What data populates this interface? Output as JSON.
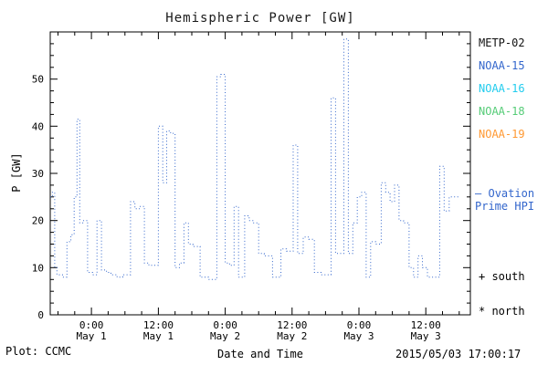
{
  "title": "Hemispheric Power [GW]",
  "ylabel": "P [GW]",
  "xlabel": "Date and Time",
  "footer": {
    "left": "Plot: CCMC",
    "right": "2015/05/03 17:00:17"
  },
  "legend": {
    "satellites": [
      {
        "label": "METP-02",
        "color": "#111111"
      },
      {
        "label": "NOAA-15",
        "color": "#3366cc"
      },
      {
        "label": "NOAA-16",
        "color": "#22ccee"
      },
      {
        "label": "NOAA-18",
        "color": "#55cc77"
      },
      {
        "label": "NOAA-19",
        "color": "#ff9933"
      }
    ],
    "line_sample": "–",
    "line_label_1": "Ovation",
    "line_label_2": "Prime HPI",
    "line_color": "#3366cc",
    "south_label": "+ south",
    "north_label": "* north"
  },
  "chart_data": {
    "type": "line",
    "style": "dotted-step",
    "title": "Hemispheric Power [GW]",
    "xlabel": "Date and Time",
    "ylabel": "P [GW]",
    "color": "#3366cc",
    "x_unit": "hours from 2015-05-01 00:00 UT",
    "xlim": [
      -7.4,
      68
    ],
    "ylim": [
      0,
      60
    ],
    "yticks": [
      0,
      10,
      20,
      30,
      40,
      50
    ],
    "y_minor_step": 2.5,
    "x_minor_step": 3,
    "xticks": [
      {
        "t": 0,
        "time": "0:00",
        "date": "May 1"
      },
      {
        "t": 12,
        "time": "12:00",
        "date": "May 1"
      },
      {
        "t": 24,
        "time": "0:00",
        "date": "May 2"
      },
      {
        "t": 36,
        "time": "12:00",
        "date": "May 2"
      },
      {
        "t": 48,
        "time": "0:00",
        "date": "May 3"
      },
      {
        "t": 60,
        "time": "12:00",
        "date": "May 3"
      }
    ],
    "points": [
      [
        -7.4,
        25
      ],
      [
        -7.0,
        26
      ],
      [
        -6.6,
        10
      ],
      [
        -6.2,
        8.5
      ],
      [
        -5.2,
        8
      ],
      [
        -4.4,
        15.5
      ],
      [
        -3.7,
        17
      ],
      [
        -3.1,
        25
      ],
      [
        -2.6,
        41.5
      ],
      [
        -2.1,
        19.5
      ],
      [
        -1.4,
        20
      ],
      [
        -0.7,
        9
      ],
      [
        0.2,
        8.5
      ],
      [
        1.0,
        20
      ],
      [
        1.8,
        9.5
      ],
      [
        2.7,
        9
      ],
      [
        3.5,
        8.5
      ],
      [
        4.6,
        8
      ],
      [
        5.6,
        8.5
      ],
      [
        7.0,
        24
      ],
      [
        7.8,
        22.5
      ],
      [
        8.6,
        23
      ],
      [
        9.5,
        11
      ],
      [
        10.3,
        10.5
      ],
      [
        12.0,
        40
      ],
      [
        12.8,
        28
      ],
      [
        13.5,
        39
      ],
      [
        14.2,
        38.5
      ],
      [
        15.0,
        10
      ],
      [
        15.8,
        11
      ],
      [
        16.6,
        19.5
      ],
      [
        17.4,
        15
      ],
      [
        18.2,
        14.5
      ],
      [
        19.5,
        8
      ],
      [
        21.0,
        7.5
      ],
      [
        22.5,
        50.5
      ],
      [
        23.2,
        51
      ],
      [
        24.0,
        11
      ],
      [
        24.8,
        10.5
      ],
      [
        25.6,
        23
      ],
      [
        26.4,
        8
      ],
      [
        27.5,
        21
      ],
      [
        28.3,
        20
      ],
      [
        29.1,
        19.5
      ],
      [
        30.0,
        13
      ],
      [
        31.0,
        12.5
      ],
      [
        32.5,
        8
      ],
      [
        34.0,
        14
      ],
      [
        35.0,
        13.5
      ],
      [
        36.2,
        36
      ],
      [
        37.0,
        13
      ],
      [
        38.0,
        16.5
      ],
      [
        39.0,
        16
      ],
      [
        40.0,
        9
      ],
      [
        41.2,
        8.5
      ],
      [
        43.0,
        46
      ],
      [
        43.8,
        13
      ],
      [
        45.3,
        58.5
      ],
      [
        46.1,
        13
      ],
      [
        46.9,
        19.5
      ],
      [
        47.7,
        25
      ],
      [
        48.5,
        26
      ],
      [
        49.3,
        8
      ],
      [
        50.1,
        15.5
      ],
      [
        51.0,
        15
      ],
      [
        52.0,
        28
      ],
      [
        52.8,
        26
      ],
      [
        53.6,
        24
      ],
      [
        54.4,
        27.5
      ],
      [
        55.2,
        20
      ],
      [
        56.0,
        19.5
      ],
      [
        57.0,
        10
      ],
      [
        57.8,
        8
      ],
      [
        58.6,
        12.5
      ],
      [
        59.4,
        10
      ],
      [
        60.3,
        8
      ],
      [
        62.5,
        31.5
      ],
      [
        63.3,
        22
      ],
      [
        64.2,
        25
      ],
      [
        66.0,
        25
      ]
    ]
  }
}
